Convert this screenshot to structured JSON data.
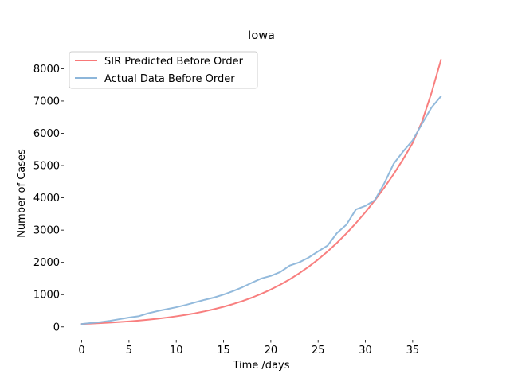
{
  "chart_data": {
    "type": "line",
    "title": "Iowa",
    "xlabel": "Time /days",
    "ylabel": "Number of Cases",
    "xlim": [
      -1.9,
      39.9
    ],
    "ylim": [
      -400,
      8700
    ],
    "xticks": [
      0,
      5,
      10,
      15,
      20,
      25,
      30,
      35
    ],
    "yticks": [
      0,
      1000,
      2000,
      3000,
      4000,
      5000,
      6000,
      7000,
      8000
    ],
    "grid": false,
    "legend_position": "upper-left",
    "series": [
      {
        "name": "SIR Predicted Before Order",
        "color": "#f87878",
        "x": [
          0,
          1,
          2,
          3,
          4,
          5,
          6,
          7,
          8,
          9,
          10,
          11,
          12,
          13,
          14,
          15,
          16,
          17,
          18,
          19,
          20,
          21,
          22,
          23,
          24,
          25,
          26,
          27,
          28,
          29,
          30,
          31,
          32,
          33,
          34,
          35,
          36,
          37,
          38
        ],
        "values": [
          90,
          103,
          117,
          133,
          151,
          172,
          196,
          223,
          254,
          289,
          329,
          374,
          425,
          483,
          549,
          623,
          707,
          801,
          907,
          1026,
          1159,
          1308,
          1475,
          1660,
          1865,
          2090,
          2337,
          2606,
          2899,
          3215,
          3556,
          3922,
          4316,
          4740,
          5200,
          5700,
          6370,
          7260,
          8280
        ]
      },
      {
        "name": "Actual Data Before Order",
        "color": "#8db6da",
        "x": [
          0,
          1,
          2,
          3,
          4,
          5,
          6,
          7,
          8,
          9,
          10,
          11,
          12,
          13,
          14,
          15,
          16,
          17,
          18,
          19,
          20,
          21,
          22,
          23,
          24,
          25,
          26,
          27,
          28,
          29,
          30,
          31,
          32,
          33,
          34,
          35,
          36,
          37,
          38
        ],
        "values": [
          90,
          120,
          150,
          190,
          240,
          290,
          330,
          420,
          490,
          550,
          610,
          680,
          760,
          840,
          910,
          1000,
          1110,
          1230,
          1370,
          1500,
          1580,
          1700,
          1900,
          2000,
          2150,
          2340,
          2520,
          2910,
          3170,
          3640,
          3750,
          3930,
          4450,
          5060,
          5440,
          5780,
          6300,
          6800,
          7150
        ]
      }
    ]
  }
}
